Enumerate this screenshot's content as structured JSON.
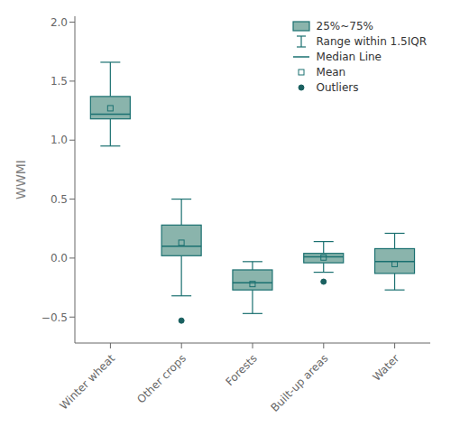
{
  "chart_data": {
    "type": "box",
    "categories": [
      "Winter wheat",
      "Other crops",
      "Forests",
      "Built-up areas",
      "Water"
    ],
    "ylabel": "WWMI",
    "ylim": [
      -0.72,
      2.05
    ],
    "yticks": [
      {
        "value": -0.5,
        "label": "−0.5"
      },
      {
        "value": 0.0,
        "label": "0.0"
      },
      {
        "value": 0.5,
        "label": "0.5"
      },
      {
        "value": 1.0,
        "label": "1.0"
      },
      {
        "value": 1.5,
        "label": "1.5"
      },
      {
        "value": 2.0,
        "label": "2.0"
      }
    ],
    "boxes": [
      {
        "q1": 1.18,
        "median": 1.22,
        "q3": 1.37,
        "mean": 1.27,
        "whislo": 0.95,
        "whishi": 1.66,
        "fliers": []
      },
      {
        "q1": 0.02,
        "median": 0.1,
        "q3": 0.28,
        "mean": 0.13,
        "whislo": -0.32,
        "whishi": 0.5,
        "fliers": [
          -0.53
        ]
      },
      {
        "q1": -0.27,
        "median": -0.21,
        "q3": -0.1,
        "mean": -0.22,
        "whislo": -0.47,
        "whishi": -0.03,
        "fliers": []
      },
      {
        "q1": -0.04,
        "median": 0.01,
        "q3": 0.04,
        "mean": 0.005,
        "whislo": -0.12,
        "whishi": 0.14,
        "fliers": [
          -0.2
        ]
      },
      {
        "q1": -0.13,
        "median": -0.03,
        "q3": 0.08,
        "mean": -0.05,
        "whislo": -0.27,
        "whishi": 0.21,
        "fliers": []
      }
    ],
    "color": "#8ab4ac",
    "edge_color": "#1a7070",
    "flier_color": "#1a6060",
    "legend": "upper right",
    "legend_labels": [
      "25%~75%",
      "Range within 1.5IQR",
      "Median Line",
      "Mean",
      "Outliers"
    ],
    "grid": false
  }
}
